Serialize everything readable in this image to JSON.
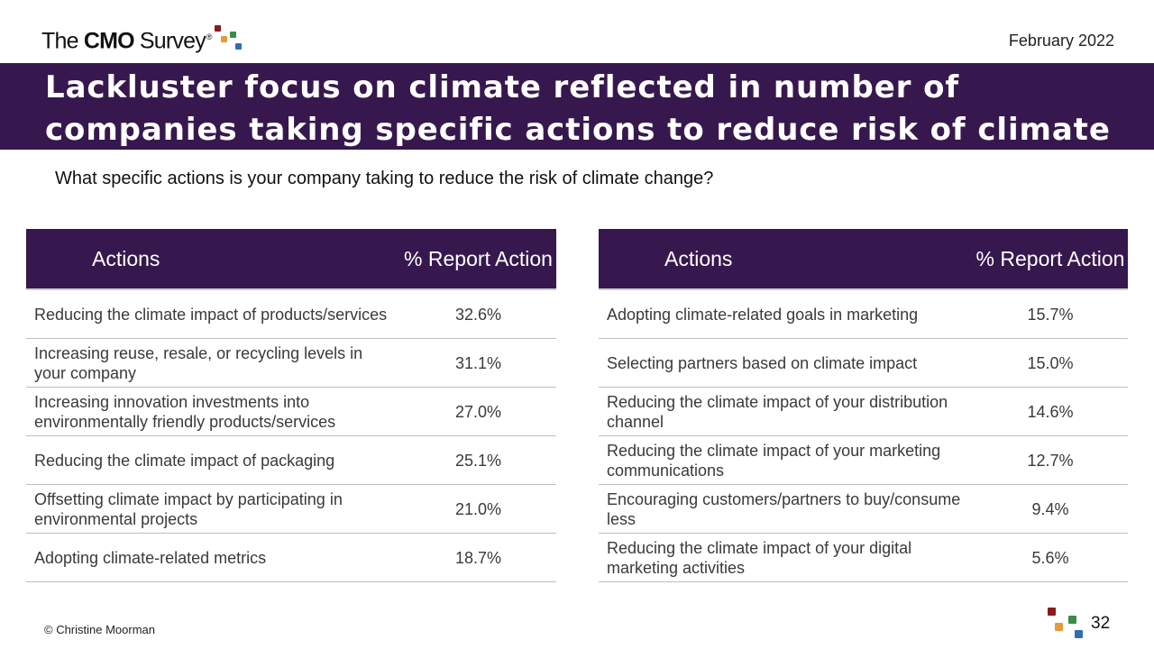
{
  "logo": {
    "part1": "The ",
    "part2": "CMO",
    "part3": " Survey",
    "registered": "®",
    "colors": [
      "#8b1a1a",
      "#e39b3b",
      "#3a8d49",
      "#2f6db5"
    ]
  },
  "header": {
    "date": "February 2022"
  },
  "banner": {
    "title": "Lackluster focus on climate reflected in number of companies taking specific actions to reduce risk of climate change"
  },
  "question": "What specific actions is your company taking to reduce the risk of climate change?",
  "tables": {
    "left": {
      "col_actions": "Actions",
      "col_pct": "% Report Action",
      "rows": [
        {
          "action": "Reducing the climate impact of products/services",
          "value": "32.6%"
        },
        {
          "action": "Increasing reuse, resale, or recycling levels in your company",
          "value": "31.1%"
        },
        {
          "action": "Increasing innovation investments into environmentally friendly products/services",
          "value": "27.0%"
        },
        {
          "action": "Reducing the climate impact of packaging",
          "value": "25.1%"
        },
        {
          "action": "Offsetting climate impact by participating in environmental projects",
          "value": "21.0%"
        },
        {
          "action": "Adopting climate-related metrics",
          "value": "18.7%"
        }
      ]
    },
    "right": {
      "col_actions": "Actions",
      "col_pct": "% Report Action",
      "rows": [
        {
          "action": "Adopting climate-related goals in marketing",
          "value": "15.7%"
        },
        {
          "action": "Selecting partners based on climate impact",
          "value": "15.0%"
        },
        {
          "action": "Reducing the climate impact of your distribution channel",
          "value": "14.6%"
        },
        {
          "action": "Reducing the climate impact of your marketing communications",
          "value": "12.7%"
        },
        {
          "action": "Encouraging customers/partners to buy/consume less",
          "value": "9.4%"
        },
        {
          "action": "Reducing the climate impact of your digital marketing activities",
          "value": "5.6%"
        }
      ]
    }
  },
  "footer": {
    "copyright": "© Christine Moorman",
    "page_number": "32"
  },
  "colors": {
    "banner": "#36184e",
    "header_row": "#36184e"
  }
}
